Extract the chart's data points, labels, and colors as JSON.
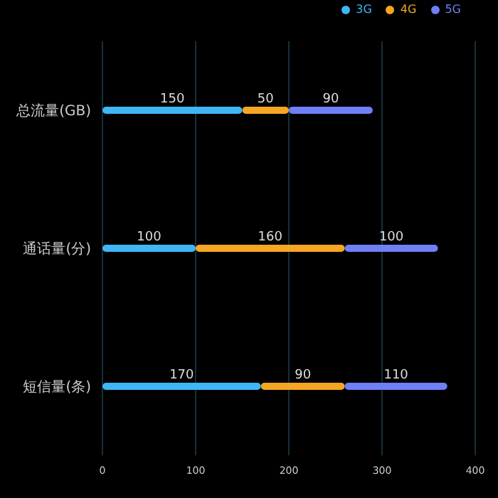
{
  "chart_data": {
    "type": "bar",
    "orientation": "horizontal",
    "stacked": true,
    "categories": [
      "总流量(GB)",
      "通话量(分)",
      "短信量(条)"
    ],
    "series": [
      {
        "name": "3G",
        "color": "#3fb6f5",
        "values": [
          150,
          100,
          170
        ]
      },
      {
        "name": "4G",
        "color": "#f5a623",
        "values": [
          50,
          160,
          90
        ]
      },
      {
        "name": "5G",
        "color": "#6f7ff5",
        "values": [
          90,
          100,
          110
        ]
      }
    ],
    "xlim": [
      0,
      400
    ],
    "xticks": [
      0,
      100,
      200,
      300,
      400
    ],
    "grid": "x",
    "legend": "top right",
    "data_labels": true
  }
}
